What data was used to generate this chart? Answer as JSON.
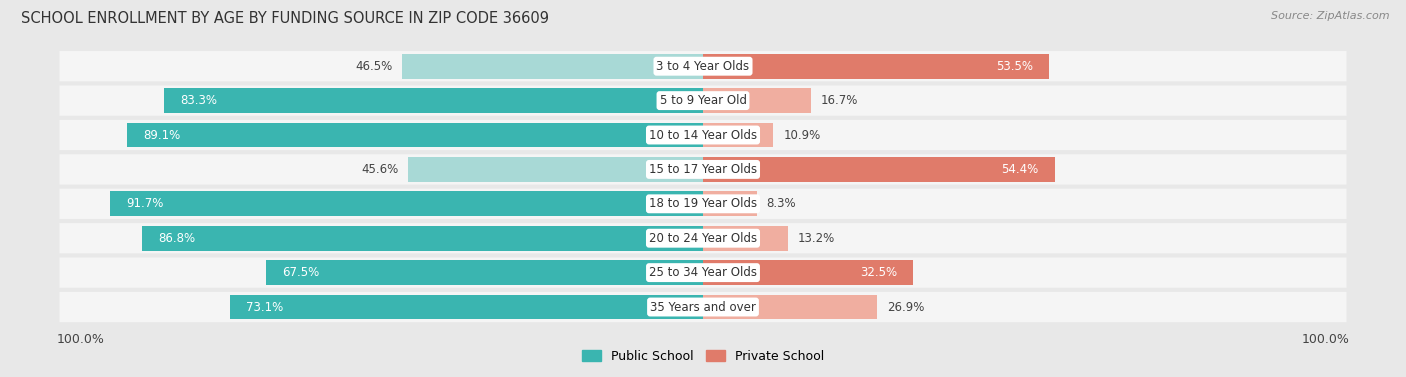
{
  "title": "SCHOOL ENROLLMENT BY AGE BY FUNDING SOURCE IN ZIP CODE 36609",
  "source": "Source: ZipAtlas.com",
  "categories": [
    "3 to 4 Year Olds",
    "5 to 9 Year Old",
    "10 to 14 Year Olds",
    "15 to 17 Year Olds",
    "18 to 19 Year Olds",
    "20 to 24 Year Olds",
    "25 to 34 Year Olds",
    "35 Years and over"
  ],
  "public_values": [
    46.5,
    83.3,
    89.1,
    45.6,
    91.7,
    86.8,
    67.5,
    73.1
  ],
  "private_values": [
    53.5,
    16.7,
    10.9,
    54.4,
    8.3,
    13.2,
    32.5,
    26.9
  ],
  "public_color_dark": "#3ab5b0",
  "public_color_light": "#a8d9d6",
  "private_color_dark": "#e07b6a",
  "private_color_light": "#f0aea0",
  "bg_color": "#e8e8e8",
  "row_bg": "#f5f5f5",
  "label_font_size": 8.5,
  "title_font_size": 10.5,
  "legend_font_size": 9,
  "source_font_size": 8
}
